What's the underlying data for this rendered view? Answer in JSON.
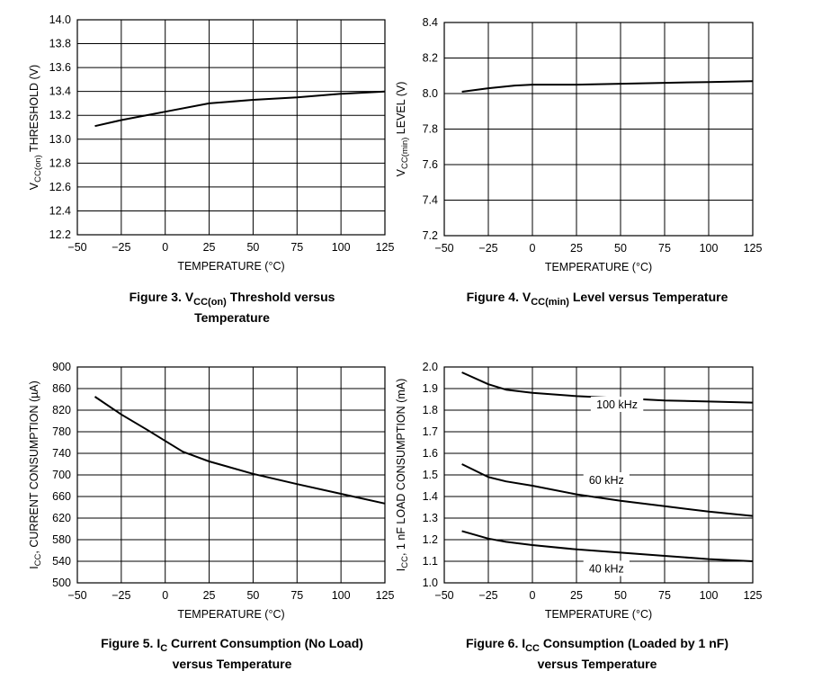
{
  "chart_data": [
    {
      "type": "line",
      "xlabel": "TEMPERATURE (°C)",
      "ylabel": {
        "pre": "V",
        "sub": "CC(on)",
        "post": " THRESHOLD (V)"
      },
      "xlim": [
        -50,
        125
      ],
      "ylim": [
        12.2,
        14.0
      ],
      "x_ticks": [
        "−50",
        "−25",
        "0",
        "25",
        "50",
        "75",
        "100",
        "125"
      ],
      "y_ticks": [
        "12.2",
        "12.4",
        "12.6",
        "12.8",
        "13.0",
        "13.2",
        "13.4",
        "13.6",
        "13.8",
        "14.0"
      ],
      "grid": true,
      "series": [
        {
          "x": [
            -40,
            -25,
            0,
            25,
            50,
            75,
            100,
            125
          ],
          "values": [
            13.11,
            13.16,
            13.23,
            13.3,
            13.33,
            13.35,
            13.38,
            13.4
          ]
        }
      ],
      "caption": {
        "line1": {
          "pre": "Figure 3. V",
          "sub": "CC(on)",
          "post": " Threshold versus"
        },
        "line2": "Temperature"
      }
    },
    {
      "type": "line",
      "xlabel": "TEMPERATURE (°C)",
      "ylabel": {
        "pre": "V",
        "sub": "CC(min)",
        "post": " LEVEL (V)"
      },
      "xlim": [
        -50,
        125
      ],
      "ylim": [
        7.2,
        8.4
      ],
      "x_ticks": [
        "−50",
        "−25",
        "0",
        "25",
        "50",
        "75",
        "100",
        "125"
      ],
      "y_ticks": [
        "7.2",
        "7.4",
        "7.6",
        "7.8",
        "8.0",
        "8.2",
        "8.4"
      ],
      "grid": true,
      "series": [
        {
          "x": [
            -40,
            -25,
            -10,
            0,
            25,
            50,
            75,
            100,
            125
          ],
          "values": [
            8.01,
            8.03,
            8.045,
            8.05,
            8.05,
            8.055,
            8.06,
            8.065,
            8.07
          ]
        }
      ],
      "caption": {
        "line1": {
          "pre": "Figure 4. V",
          "sub": "CC(min)",
          "post": " Level versus Temperature"
        },
        "line2": ""
      }
    },
    {
      "type": "line",
      "xlabel": "TEMPERATURE (°C)",
      "ylabel": {
        "pre": "I",
        "sub": "CC",
        "post": ", CURRENT CONSUMPTION (µA)"
      },
      "xlim": [
        -50,
        125
      ],
      "ylim": [
        500,
        900
      ],
      "x_ticks": [
        "−50",
        "−25",
        "0",
        "25",
        "50",
        "75",
        "100",
        "125"
      ],
      "y_ticks": [
        "500",
        "540",
        "580",
        "620",
        "660",
        "700",
        "740",
        "780",
        "820",
        "860",
        "900"
      ],
      "grid": true,
      "series": [
        {
          "x": [
            -40,
            -25,
            -10,
            0,
            10,
            25,
            50,
            75,
            100,
            125
          ],
          "values": [
            845,
            812,
            783,
            763,
            743,
            725,
            702,
            683,
            665,
            647
          ]
        }
      ],
      "caption": {
        "line1": {
          "pre": "Figure 5. I",
          "sub": "C",
          "post": " Current Consumption (No Load)"
        },
        "line2": "versus Temperature"
      }
    },
    {
      "type": "line",
      "xlabel": "TEMPERATURE (°C)",
      "ylabel": {
        "pre": "I",
        "sub": "CC",
        "post": ", 1 nF LOAD CONSUMPTION (mA)"
      },
      "xlim": [
        -50,
        125
      ],
      "ylim": [
        1.0,
        2.0
      ],
      "x_ticks": [
        "−50",
        "−25",
        "0",
        "25",
        "50",
        "75",
        "100",
        "125"
      ],
      "y_ticks": [
        "1.0",
        "1.1",
        "1.2",
        "1.3",
        "1.4",
        "1.5",
        "1.6",
        "1.7",
        "1.8",
        "1.9",
        "2.0"
      ],
      "grid": true,
      "series": [
        {
          "name": "100 kHz",
          "x": [
            -40,
            -25,
            -15,
            0,
            25,
            50,
            75,
            100,
            125
          ],
          "values": [
            1.975,
            1.92,
            1.895,
            1.88,
            1.865,
            1.855,
            1.845,
            1.84,
            1.835
          ],
          "label_at": [
            48,
            1.825
          ]
        },
        {
          "name": "60 kHz",
          "x": [
            -40,
            -25,
            -15,
            0,
            25,
            50,
            75,
            100,
            125
          ],
          "values": [
            1.55,
            1.49,
            1.47,
            1.45,
            1.41,
            1.38,
            1.355,
            1.33,
            1.31
          ],
          "label_at": [
            42,
            1.475
          ]
        },
        {
          "name": "40 kHz",
          "x": [
            -40,
            -25,
            -15,
            0,
            25,
            50,
            75,
            100,
            125
          ],
          "values": [
            1.24,
            1.205,
            1.19,
            1.175,
            1.155,
            1.14,
            1.125,
            1.11,
            1.1
          ],
          "label_at": [
            42,
            1.065
          ]
        }
      ],
      "caption": {
        "line1": {
          "pre": "Figure 6. I",
          "sub": "CC",
          "post": " Consumption (Loaded by 1 nF)"
        },
        "line2": "versus Temperature"
      }
    }
  ]
}
